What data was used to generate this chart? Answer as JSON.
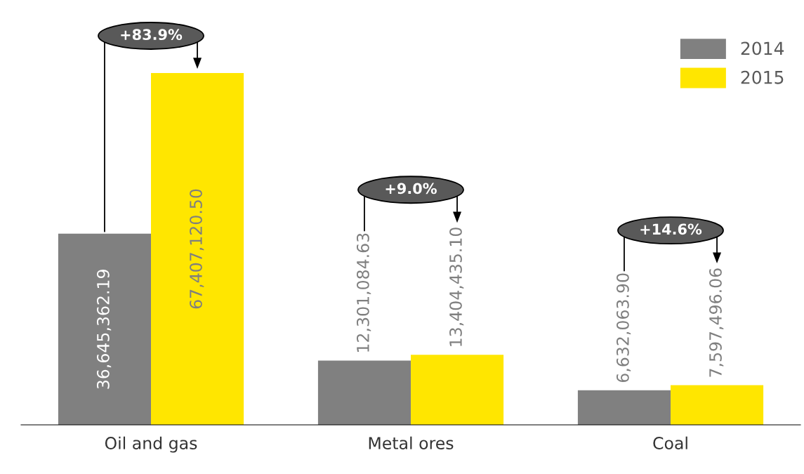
{
  "chart_data": {
    "type": "bar",
    "categories": [
      "Oil and gas",
      "Metal ores",
      "Coal"
    ],
    "series": [
      {
        "name": "2014",
        "color": "#808080",
        "values": [
          36645362.19,
          12301084.63,
          6632063.9
        ],
        "value_labels": [
          "36,645,362.19",
          "12,301,084.63",
          "6,632,063.90"
        ]
      },
      {
        "name": "2015",
        "color": "#ffe600",
        "values": [
          67407120.5,
          13404435.1,
          7597496.06
        ],
        "value_labels": [
          "67,407,120.50",
          "13,404,435.10",
          "7,597,496.06"
        ]
      }
    ],
    "annotations": [
      "+83.9%",
      "+9.0%",
      "+14.6%"
    ],
    "legend": "top right",
    "grid": false
  }
}
